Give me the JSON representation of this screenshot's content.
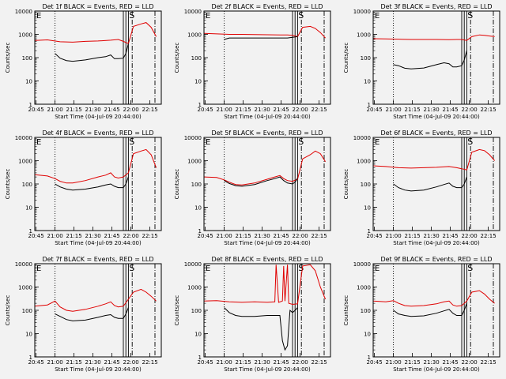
{
  "chart_data": {
    "type": "line",
    "figure_ylabel": "Counts/sec",
    "series_legend": "BLACK = Events, RED = LLD",
    "xlabel": "Start Time (04-Jul-09 20:44:00)",
    "x_ticks": [
      "20:45",
      "21:00",
      "21:15",
      "21:30",
      "21:45",
      "22:00",
      "22:15"
    ],
    "y_ticks": [
      "1",
      "10",
      "100",
      "1000",
      "10000"
    ],
    "xlim_minutes": [
      0,
      100
    ],
    "ylim": [
      1,
      10000
    ],
    "yscale": "log",
    "marker_labels": {
      "E": "E",
      "S": "S"
    },
    "markers": {
      "dotted_x": 16,
      "solid_x": [
        70,
        72,
        74
      ],
      "dashdot_x": [
        77,
        95
      ]
    },
    "panels": [
      {
        "title": "Det 1f BLACK = Events, RED = LLD",
        "label": "Det 1f",
        "red": [
          [
            0,
            550
          ],
          [
            10,
            580
          ],
          [
            20,
            480
          ],
          [
            30,
            460
          ],
          [
            40,
            500
          ],
          [
            50,
            520
          ],
          [
            60,
            560
          ],
          [
            66,
            600
          ],
          [
            70,
            500
          ],
          [
            74,
            400
          ],
          [
            78,
            2200
          ],
          [
            84,
            2800
          ],
          [
            88,
            3200
          ],
          [
            92,
            2000
          ],
          [
            96,
            800
          ]
        ],
        "black": [
          [
            16,
            150
          ],
          [
            20,
            95
          ],
          [
            25,
            75
          ],
          [
            30,
            70
          ],
          [
            40,
            80
          ],
          [
            50,
            100
          ],
          [
            56,
            110
          ],
          [
            60,
            130
          ],
          [
            63,
            90
          ],
          [
            66,
            90
          ],
          [
            70,
            95
          ],
          [
            72,
            150
          ],
          [
            74,
            400
          ]
        ]
      },
      {
        "title": "Det 2f BLACK = Events, RED = LLD",
        "label": "Det 2f",
        "red": [
          [
            0,
            1100
          ],
          [
            10,
            1050
          ],
          [
            20,
            1000
          ],
          [
            30,
            1000
          ],
          [
            40,
            980
          ],
          [
            50,
            960
          ],
          [
            60,
            950
          ],
          [
            66,
            950
          ],
          [
            70,
            900
          ],
          [
            74,
            800
          ],
          [
            78,
            2000
          ],
          [
            84,
            2200
          ],
          [
            88,
            1800
          ],
          [
            92,
            1200
          ],
          [
            96,
            700
          ]
        ],
        "black": [
          [
            16,
            600
          ],
          [
            20,
            700
          ],
          [
            30,
            700
          ],
          [
            40,
            700
          ],
          [
            50,
            700
          ],
          [
            60,
            700
          ],
          [
            66,
            700
          ],
          [
            70,
            750
          ],
          [
            74,
            800
          ]
        ]
      },
      {
        "title": "Det 3f BLACK = Events, RED = LLD",
        "label": "Det 3f",
        "red": [
          [
            0,
            650
          ],
          [
            10,
            640
          ],
          [
            20,
            620
          ],
          [
            30,
            600
          ],
          [
            40,
            600
          ],
          [
            50,
            600
          ],
          [
            60,
            590
          ],
          [
            66,
            600
          ],
          [
            70,
            600
          ],
          [
            74,
            550
          ],
          [
            78,
            800
          ],
          [
            84,
            950
          ],
          [
            88,
            900
          ],
          [
            92,
            850
          ],
          [
            96,
            800
          ]
        ],
        "black": [
          [
            16,
            50
          ],
          [
            20,
            45
          ],
          [
            25,
            35
          ],
          [
            30,
            33
          ],
          [
            40,
            36
          ],
          [
            50,
            50
          ],
          [
            56,
            60
          ],
          [
            60,
            55
          ],
          [
            63,
            40
          ],
          [
            66,
            40
          ],
          [
            70,
            45
          ],
          [
            72,
            80
          ],
          [
            74,
            200
          ]
        ]
      },
      {
        "title": "Det 4f BLACK = Events, RED = LLD",
        "label": "Det 4f",
        "red": [
          [
            0,
            250
          ],
          [
            10,
            220
          ],
          [
            16,
            170
          ],
          [
            20,
            130
          ],
          [
            25,
            110
          ],
          [
            30,
            110
          ],
          [
            40,
            140
          ],
          [
            50,
            200
          ],
          [
            56,
            240
          ],
          [
            60,
            300
          ],
          [
            63,
            200
          ],
          [
            66,
            180
          ],
          [
            70,
            200
          ],
          [
            74,
            300
          ],
          [
            78,
            2000
          ],
          [
            84,
            2600
          ],
          [
            88,
            3000
          ],
          [
            92,
            1800
          ],
          [
            96,
            500
          ]
        ],
        "black": [
          [
            16,
            100
          ],
          [
            20,
            75
          ],
          [
            25,
            60
          ],
          [
            30,
            55
          ],
          [
            40,
            60
          ],
          [
            50,
            75
          ],
          [
            56,
            90
          ],
          [
            60,
            100
          ],
          [
            63,
            80
          ],
          [
            66,
            70
          ],
          [
            70,
            70
          ],
          [
            72,
            100
          ],
          [
            74,
            200
          ]
        ]
      },
      {
        "title": "Det 5f BLACK = Events, RED = LLD",
        "label": "Det 5f",
        "red": [
          [
            0,
            200
          ],
          [
            10,
            190
          ],
          [
            16,
            150
          ],
          [
            20,
            120
          ],
          [
            25,
            95
          ],
          [
            30,
            90
          ],
          [
            40,
            110
          ],
          [
            50,
            160
          ],
          [
            56,
            200
          ],
          [
            60,
            230
          ],
          [
            63,
            170
          ],
          [
            66,
            140
          ],
          [
            70,
            130
          ],
          [
            74,
            160
          ],
          [
            78,
            1200
          ],
          [
            84,
            1800
          ],
          [
            88,
            2600
          ],
          [
            92,
            2000
          ],
          [
            96,
            900
          ]
        ],
        "black": [
          [
            16,
            140
          ],
          [
            20,
            105
          ],
          [
            25,
            85
          ],
          [
            30,
            80
          ],
          [
            40,
            95
          ],
          [
            50,
            140
          ],
          [
            56,
            170
          ],
          [
            60,
            200
          ],
          [
            63,
            140
          ],
          [
            66,
            110
          ],
          [
            70,
            100
          ],
          [
            72,
            120
          ],
          [
            74,
            180
          ]
        ]
      },
      {
        "title": "Det 6f BLACK = Events, RED = LLD",
        "label": "Det 6f",
        "red": [
          [
            0,
            600
          ],
          [
            10,
            560
          ],
          [
            20,
            500
          ],
          [
            30,
            480
          ],
          [
            40,
            500
          ],
          [
            50,
            520
          ],
          [
            56,
            550
          ],
          [
            60,
            560
          ],
          [
            66,
            500
          ],
          [
            70,
            450
          ],
          [
            74,
            400
          ],
          [
            78,
            2300
          ],
          [
            84,
            3000
          ],
          [
            88,
            2700
          ],
          [
            92,
            1800
          ],
          [
            96,
            1000
          ]
        ],
        "black": [
          [
            16,
            100
          ],
          [
            20,
            70
          ],
          [
            25,
            55
          ],
          [
            30,
            50
          ],
          [
            40,
            55
          ],
          [
            50,
            75
          ],
          [
            56,
            95
          ],
          [
            60,
            110
          ],
          [
            63,
            80
          ],
          [
            66,
            70
          ],
          [
            70,
            70
          ],
          [
            72,
            100
          ],
          [
            74,
            200
          ]
        ]
      },
      {
        "title": "Det 7f BLACK = Events, RED = LLD",
        "label": "Det 7f",
        "red": [
          [
            0,
            150
          ],
          [
            10,
            170
          ],
          [
            16,
            250
          ],
          [
            20,
            140
          ],
          [
            25,
            100
          ],
          [
            30,
            90
          ],
          [
            40,
            110
          ],
          [
            50,
            150
          ],
          [
            56,
            190
          ],
          [
            60,
            230
          ],
          [
            63,
            160
          ],
          [
            66,
            140
          ],
          [
            70,
            150
          ],
          [
            74,
            300
          ],
          [
            78,
            600
          ],
          [
            84,
            800
          ],
          [
            88,
            600
          ],
          [
            92,
            400
          ],
          [
            96,
            250
          ]
        ],
        "black": [
          [
            16,
            70
          ],
          [
            20,
            55
          ],
          [
            25,
            40
          ],
          [
            30,
            35
          ],
          [
            40,
            38
          ],
          [
            50,
            50
          ],
          [
            56,
            60
          ],
          [
            60,
            65
          ],
          [
            63,
            50
          ],
          [
            66,
            45
          ],
          [
            70,
            45
          ],
          [
            72,
            70
          ],
          [
            74,
            130
          ]
        ]
      },
      {
        "title": "Det 8f BLACK = Events, RED = LLD",
        "label": "Det 8f",
        "red": [
          [
            0,
            250
          ],
          [
            10,
            260
          ],
          [
            20,
            230
          ],
          [
            30,
            220
          ],
          [
            40,
            230
          ],
          [
            50,
            220
          ],
          [
            56,
            230
          ],
          [
            57,
            9000
          ],
          [
            59,
            220
          ],
          [
            62,
            250
          ],
          [
            63,
            8000
          ],
          [
            64,
            250
          ],
          [
            66,
            9000
          ],
          [
            67,
            200
          ],
          [
            70,
            180
          ],
          [
            74,
            190
          ],
          [
            78,
            8000
          ],
          [
            84,
            9000
          ],
          [
            88,
            5000
          ],
          [
            92,
            1000
          ],
          [
            96,
            300
          ]
        ],
        "black": [
          [
            16,
            130
          ],
          [
            20,
            80
          ],
          [
            25,
            60
          ],
          [
            30,
            55
          ],
          [
            40,
            55
          ],
          [
            50,
            60
          ],
          [
            56,
            60
          ],
          [
            60,
            60
          ],
          [
            62,
            5
          ],
          [
            64,
            2
          ],
          [
            66,
            3
          ],
          [
            68,
            100
          ],
          [
            70,
            80
          ],
          [
            72,
            100
          ],
          [
            74,
            130
          ]
        ]
      },
      {
        "title": "Det 9f BLACK = Events, RED = LLD",
        "label": "Det 9f",
        "red": [
          [
            0,
            250
          ],
          [
            10,
            230
          ],
          [
            16,
            260
          ],
          [
            20,
            200
          ],
          [
            25,
            160
          ],
          [
            30,
            150
          ],
          [
            40,
            160
          ],
          [
            50,
            190
          ],
          [
            56,
            230
          ],
          [
            60,
            250
          ],
          [
            63,
            170
          ],
          [
            66,
            150
          ],
          [
            70,
            160
          ],
          [
            74,
            250
          ],
          [
            78,
            600
          ],
          [
            84,
            700
          ],
          [
            88,
            500
          ],
          [
            92,
            300
          ],
          [
            96,
            200
          ]
        ],
        "black": [
          [
            16,
            100
          ],
          [
            20,
            70
          ],
          [
            25,
            60
          ],
          [
            30,
            55
          ],
          [
            40,
            58
          ],
          [
            50,
            75
          ],
          [
            56,
            95
          ],
          [
            60,
            110
          ],
          [
            63,
            75
          ],
          [
            66,
            60
          ],
          [
            70,
            60
          ],
          [
            72,
            100
          ],
          [
            74,
            200
          ]
        ]
      }
    ]
  }
}
